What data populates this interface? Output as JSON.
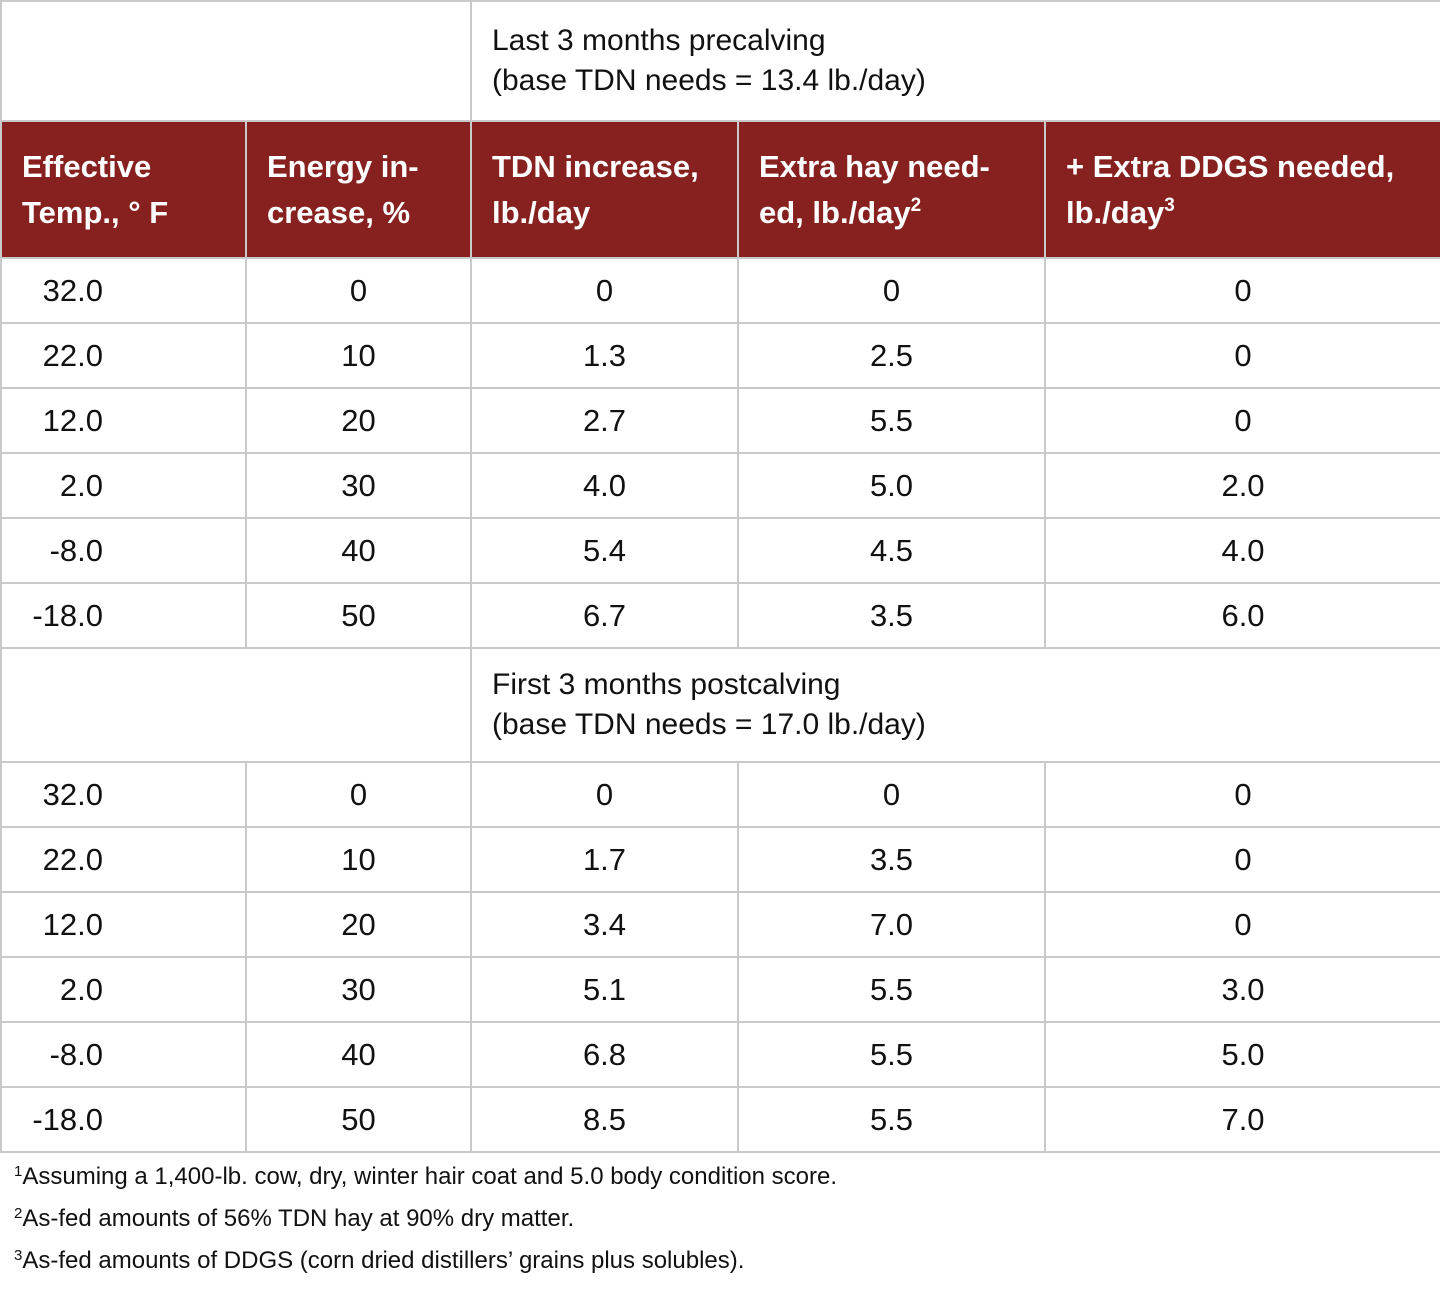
{
  "colors": {
    "header_bg": "#862120",
    "header_text": "#ffffff",
    "grid_line": "#c9c9c9",
    "body_text": "#111111"
  },
  "table": {
    "columns": [
      {
        "line1": "Effective",
        "line2": "Temp., ° F",
        "sup": ""
      },
      {
        "line1": "Energy in-",
        "line2": "crease, %",
        "sup": ""
      },
      {
        "line1": "TDN increase,",
        "line2": "lb./day",
        "sup": ""
      },
      {
        "line1": "Extra hay need-",
        "line2": "ed, lb./day",
        "sup": "2"
      },
      {
        "line1": "+ Extra DDGS needed,",
        "line2": "lb./day",
        "sup": "3"
      }
    ],
    "precalving": {
      "title_line1": "Last 3 months precalving",
      "title_line2": "(base TDN needs = 13.4 lb./day)",
      "rows": [
        [
          "32.0",
          "0",
          "0",
          "0",
          "0"
        ],
        [
          "22.0",
          "10",
          "1.3",
          "2.5",
          "0"
        ],
        [
          "12.0",
          "20",
          "2.7",
          "5.5",
          "0"
        ],
        [
          "2.0",
          "30",
          "4.0",
          "5.0",
          "2.0"
        ],
        [
          "-8.0",
          "40",
          "5.4",
          "4.5",
          "4.0"
        ],
        [
          "-18.0",
          "50",
          "6.7",
          "3.5",
          "6.0"
        ]
      ]
    },
    "postcalving": {
      "title_line1": "First 3 months postcalving",
      "title_line2": "(base TDN needs = 17.0 lb./day)",
      "rows": [
        [
          "32.0",
          "0",
          "0",
          "0",
          "0"
        ],
        [
          "22.0",
          "10",
          "1.7",
          "3.5",
          "0"
        ],
        [
          "12.0",
          "20",
          "3.4",
          "7.0",
          "0"
        ],
        [
          "2.0",
          "30",
          "5.1",
          "5.5",
          "3.0"
        ],
        [
          "-8.0",
          "40",
          "6.8",
          "5.5",
          "5.0"
        ],
        [
          "-18.0",
          "50",
          "8.5",
          "5.5",
          "7.0"
        ]
      ]
    },
    "footnotes": [
      {
        "sup": "1",
        "text": "Assuming a 1,400-lb. cow, dry, winter hair coat and 5.0 body condition score."
      },
      {
        "sup": "2",
        "text": "As-fed amounts of 56% TDN hay at 90% dry matter."
      },
      {
        "sup": "3",
        "text": "As-fed amounts of DDGS (corn dried distillers’ grains plus solubles)."
      }
    ]
  }
}
